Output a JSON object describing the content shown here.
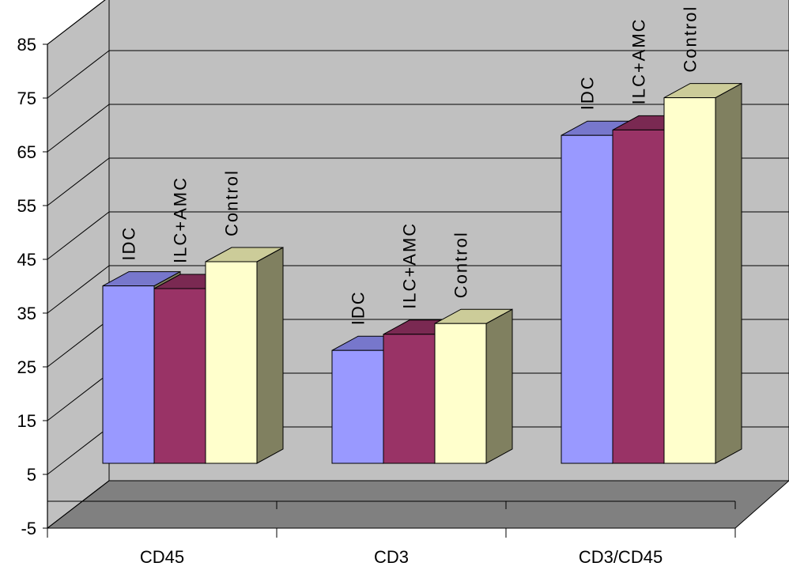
{
  "chart_data": {
    "type": "bar",
    "style": "3d-clustered-column",
    "categories": [
      "CD45",
      "CD3",
      "CD3/CD45"
    ],
    "series": [
      {
        "name": "IDC",
        "values": [
          33,
          21,
          61
        ],
        "color": "#9999ff",
        "top_color": "#7777cc"
      },
      {
        "name": "ILC+AMC",
        "values": [
          32.5,
          24,
          62
        ],
        "color": "#993366",
        "top_color": "#7a2952"
      },
      {
        "name": "Control",
        "values": [
          37.5,
          26,
          68
        ],
        "color": "#ffffcc",
        "top_color": "#cccc99"
      }
    ],
    "y_ticks": [
      "85",
      "75",
      "65",
      "55",
      "45",
      "35",
      "25",
      "15",
      "5",
      "-5"
    ],
    "ylim": [
      -5,
      85
    ],
    "grid": true,
    "legend": "none",
    "data_labels": "series-name-rotated",
    "colors": {
      "wall": "#c0c0c0",
      "floor": "#808080",
      "side": "#808060",
      "gridline": "#000000"
    }
  }
}
